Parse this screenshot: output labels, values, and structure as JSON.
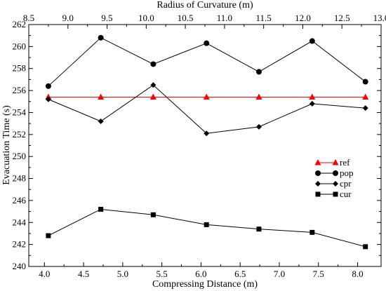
{
  "chart_data": {
    "type": "line",
    "xlabel": "Compressing Distance (m)",
    "x2label": "Radius of Curvature (m)",
    "ylabel": "Evacuation Time (s)",
    "xlim": [
      3.8,
      8.3
    ],
    "x2lim": [
      8.5,
      13.0
    ],
    "ylim": [
      240,
      262
    ],
    "xticks": [
      "4.0",
      "4.5",
      "5.0",
      "5.5",
      "6.0",
      "6.5",
      "7.0",
      "7.5",
      "8.0"
    ],
    "x2ticks": [
      "8.5",
      "9.0",
      "9.5",
      "10.0",
      "10.5",
      "11.0",
      "11.5",
      "12.0",
      "12.5",
      "13.0"
    ],
    "yticks": [
      "240",
      "242",
      "244",
      "246",
      "248",
      "250",
      "252",
      "254",
      "256",
      "258",
      "260",
      "262"
    ],
    "x": [
      4.05,
      4.72,
      5.39,
      6.07,
      6.74,
      7.42,
      8.1
    ],
    "series": [
      {
        "name": "ref",
        "marker": "triangle",
        "color": "#ff0000",
        "values": [
          255.4,
          255.4,
          255.4,
          255.4,
          255.4,
          255.4,
          255.4
        ]
      },
      {
        "name": "pop",
        "marker": "circle",
        "color": "#000000",
        "values": [
          256.4,
          260.8,
          258.4,
          260.3,
          257.7,
          260.5,
          256.8
        ]
      },
      {
        "name": "cpr",
        "marker": "diamond",
        "color": "#000000",
        "values": [
          255.2,
          253.2,
          256.5,
          252.1,
          252.7,
          254.8,
          254.4
        ]
      },
      {
        "name": "cur",
        "marker": "square",
        "color": "#000000",
        "values": [
          242.8,
          245.2,
          244.7,
          243.8,
          243.4,
          243.1,
          241.8
        ]
      }
    ],
    "legend_position": "right"
  }
}
